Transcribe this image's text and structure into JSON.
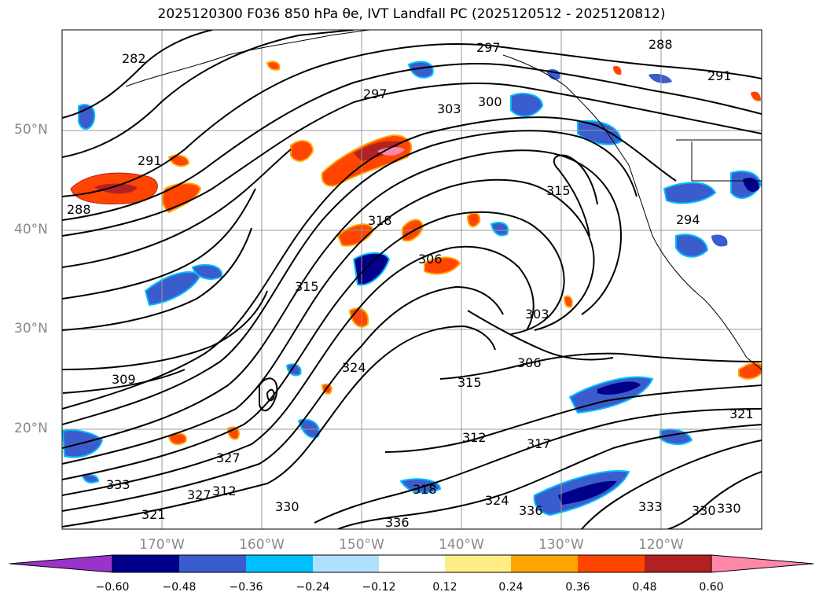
{
  "title": "2025120300 F036 850 hPa θe, IVT Landfall PC (2025120512 - 2025120812)",
  "lat_labels": [
    "50°N",
    "40°N",
    "30°N",
    "20°N"
  ],
  "lon_labels": [
    "170°W",
    "160°W",
    "150°W",
    "140°W",
    "130°W",
    "120°W"
  ],
  "colorbar": {
    "ticks": [
      "−0.60",
      "−0.48",
      "−0.36",
      "−0.24",
      "−0.12",
      "0.12",
      "0.24",
      "0.36",
      "0.48",
      "0.60"
    ],
    "colors": [
      "#9933cc",
      "#00008b",
      "#3a5ccc",
      "#00bfff",
      "#b0e0ff",
      "#ffffff",
      "#ffee88",
      "#ffa500",
      "#ff4500",
      "#b22222",
      "#ff88aa"
    ]
  },
  "contour_labels": [
    "282",
    "288",
    "291",
    "297",
    "300",
    "303",
    "315",
    "318",
    "315",
    "306",
    "303",
    "306",
    "309",
    "324",
    "315",
    "312",
    "317",
    "327",
    "330",
    "333",
    "336",
    "318",
    "321",
    "330",
    "333",
    "294",
    "297",
    "288",
    "291",
    "312",
    "321",
    "324",
    "327",
    "330",
    "336"
  ]
}
